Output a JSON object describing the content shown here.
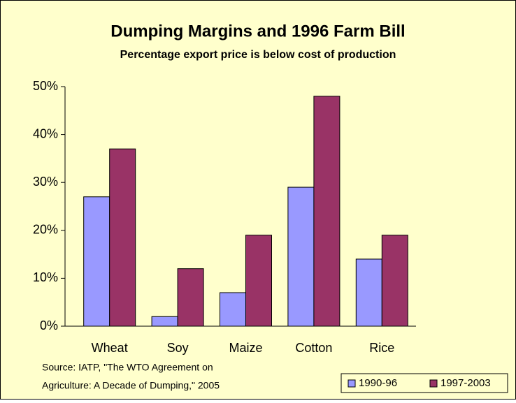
{
  "chart_data": {
    "type": "bar",
    "title": "Dumping Margins and 1996 Farm Bill",
    "subtitle": "Percentage export price is below cost of production",
    "categories": [
      "Wheat",
      "Soy",
      "Maize",
      "Cotton",
      "Rice"
    ],
    "series": [
      {
        "name": "1990-96",
        "color": "#9999FF",
        "values": [
          27,
          2,
          7,
          29,
          14
        ]
      },
      {
        "name": "1997-2003",
        "color": "#993366",
        "values": [
          37,
          12,
          19,
          48,
          19
        ]
      }
    ],
    "ylim": [
      0,
      50
    ],
    "yticks": [
      {
        "value": 0,
        "label": "0%"
      },
      {
        "value": 10,
        "label": "10%"
      },
      {
        "value": 20,
        "label": "20%"
      },
      {
        "value": 30,
        "label": "30%"
      },
      {
        "value": 40,
        "label": "40%"
      },
      {
        "value": 50,
        "label": "50%"
      }
    ],
    "source": [
      "Source: IATP, \"The WTO Agreement on",
      "Agriculture: A Decade of Dumping,\" 2005"
    ],
    "legend": "bottom-right"
  }
}
